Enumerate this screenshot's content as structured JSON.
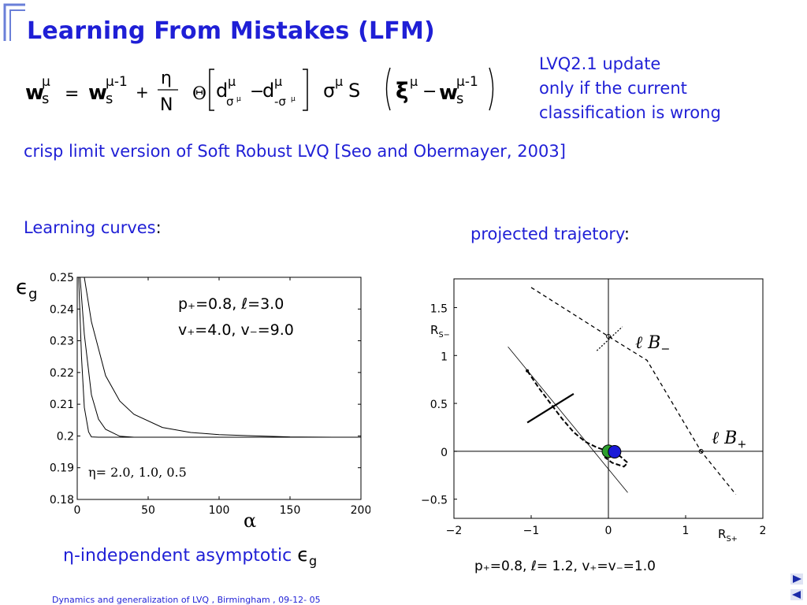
{
  "slide": {
    "title": "Learning From Mistakes (LFM)",
    "lvq_note": [
      "LVQ2.1 update",
      "only if  the current",
      "classification is wrong"
    ],
    "crisp_text": "crisp limit version of Soft Robust LVQ  [Seo and Obermayer, 2003]",
    "learning_curves_heading": "Learning curves",
    "projected_heading": "projected trajetory",
    "heading_colon": ":",
    "footer": "Dynamics and generalization of  LVQ , Birmingham , 09-12- 05",
    "accent_color": "#1f1fd6"
  },
  "formula": {
    "w": "w",
    "s": "s",
    "mu": "μ",
    "mu_minus_1": "μ-1",
    "equals": "=",
    "plus": "+",
    "minus": "−",
    "eta": "η",
    "N": "N",
    "theta": "Θ",
    "d": "d",
    "sigma_mu_sub": "σ",
    "neg_sigma_sub": "-σ",
    "sigma": "σ",
    "S": "S",
    "xi": "ξ"
  },
  "left_plot": {
    "eg_symbol": "ϵ",
    "eg_sub": "g",
    "alpha_symbol": "α",
    "param_line1": "p₊=0.8,  ℓ=3.0",
    "param_line2": "v₊=4.0,  v₋=9.0",
    "eta_values": "η= 2.0, 1.0, 0.5",
    "asymptotic_text": "η-independent asymptotic ",
    "asymptotic_eg": "ϵ",
    "asymptotic_eg_sub": "g"
  },
  "right_plot": {
    "rs_minus": "R",
    "rs_minus_sub": "S−",
    "rs_plus": "R",
    "rs_plus_sub": "S+",
    "lb_minus": "ℓ B",
    "lb_minus_sub": "−",
    "lb_plus": "ℓ B",
    "lb_plus_sub": "+",
    "params": "p₊=0.8,  ℓ= 1.2, v₊=v₋=1.0"
  },
  "chart_data": [
    {
      "type": "line",
      "xlabel": "α",
      "ylabel": "ϵg",
      "xlim": [
        0,
        200
      ],
      "ylim": [
        0.18,
        0.25
      ],
      "x_ticks": [
        "0",
        "50",
        "100",
        "150",
        "200"
      ],
      "y_ticks": [
        "0.18",
        "0.19",
        "0.2",
        "0.21",
        "0.22",
        "0.23",
        "0.24",
        "0.25"
      ],
      "series": [
        {
          "x": [
            5,
            10,
            20,
            30,
            40,
            60,
            80,
            100,
            120,
            150,
            180,
            200
          ],
          "values": [
            0.25,
            0.236,
            0.219,
            0.211,
            0.2068,
            0.2027,
            0.2011,
            0.2004,
            0.2001,
            0.1997,
            0.1996,
            0.1996
          ]
        },
        {
          "x": [
            2,
            5,
            10,
            15,
            20,
            30,
            40,
            60,
            80,
            100,
            150,
            200
          ],
          "values": [
            0.25,
            0.232,
            0.213,
            0.2053,
            0.2021,
            0.1999,
            0.1996,
            0.1996,
            0.1996,
            0.1996,
            0.1996,
            0.1996
          ]
        },
        {
          "x": [
            1,
            3,
            5,
            8,
            10,
            15,
            20,
            30,
            50,
            100,
            150,
            200
          ],
          "values": [
            0.25,
            0.225,
            0.209,
            0.2013,
            0.1997,
            0.1996,
            0.1996,
            0.1996,
            0.1996,
            0.1996,
            0.1996,
            0.1996
          ]
        }
      ],
      "annotations": [
        "η= 2.0, 1.0, 0.5"
      ]
    },
    {
      "type": "line",
      "xlabel": "RS+",
      "ylabel": "RS−",
      "xlim": [
        -2,
        2
      ],
      "ylim": [
        -0.7,
        1.8
      ],
      "x_ticks": [
        "−2",
        "−1",
        "0",
        "1",
        "2"
      ],
      "y_ticks": [
        "−0.5",
        "0",
        "0.5",
        "1",
        "1.5"
      ],
      "series": [
        {
          "x": [
            -1.05,
            -0.9,
            -0.75,
            -0.6,
            -0.45,
            -0.3,
            -0.15,
            0,
            0.15,
            0.25,
            0.2,
            0.05,
            -0.05
          ],
          "values": [
            0.84,
            0.66,
            0.5,
            0.34,
            0.2,
            0.1,
            0.04,
            0.0,
            -0.05,
            -0.12,
            -0.16,
            -0.12,
            -0.06
          ]
        },
        {
          "x": [
            -1.3,
            0.25
          ],
          "values": [
            1.09,
            -0.43
          ]
        },
        {
          "x": [
            -1.0,
            0.0,
            0.5,
            1.2,
            1.65
          ],
          "values": [
            1.71,
            1.2,
            0.95,
            0.0,
            -0.45
          ]
        }
      ],
      "points": [
        {
          "label": "green",
          "x": 0.0,
          "y": 0.0,
          "color": "#2e9e2e"
        },
        {
          "label": "blue",
          "x": 0.08,
          "y": -0.005,
          "color": "#1a1ad8"
        }
      ],
      "annotations": [
        "ℓ B−",
        "ℓ B+",
        "p₊=0.8,  ℓ= 1.2, v₊=v₋=1.0"
      ]
    }
  ]
}
